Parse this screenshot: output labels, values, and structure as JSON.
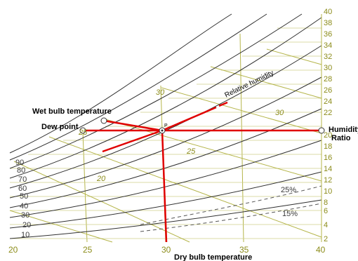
{
  "diagram": {
    "labels": {
      "wet_bulb": "Wet bulb temperature",
      "dew_point": "Dew point",
      "humidity_line1": "Humidity",
      "humidity_line2": "Ratio",
      "relative_humidity": "Relative humidity",
      "dry_bulb": "Dry bulb temperature",
      "state_point": "P"
    },
    "dry_bulb_ticks": [
      "20",
      "25",
      "30",
      "35",
      "40"
    ],
    "humidity_ratio_ticks": [
      "2",
      "4",
      "6",
      "8",
      "10",
      "12",
      "14",
      "16",
      "18",
      "20",
      "22",
      "24",
      "26",
      "28",
      "30",
      "32",
      "34",
      "36",
      "38",
      "40"
    ],
    "relative_humidity_ticks": [
      "10",
      "20",
      "30",
      "40",
      "50",
      "60",
      "70",
      "80",
      "90"
    ],
    "rh_right_labels": [
      "25%",
      "15%"
    ],
    "wet_bulb_labels": [
      "20",
      "25",
      "30",
      "25",
      "30"
    ],
    "colors": {
      "grid": "#b5b54a",
      "curves": "#2f2f2f",
      "highlight": "#e00000"
    }
  }
}
